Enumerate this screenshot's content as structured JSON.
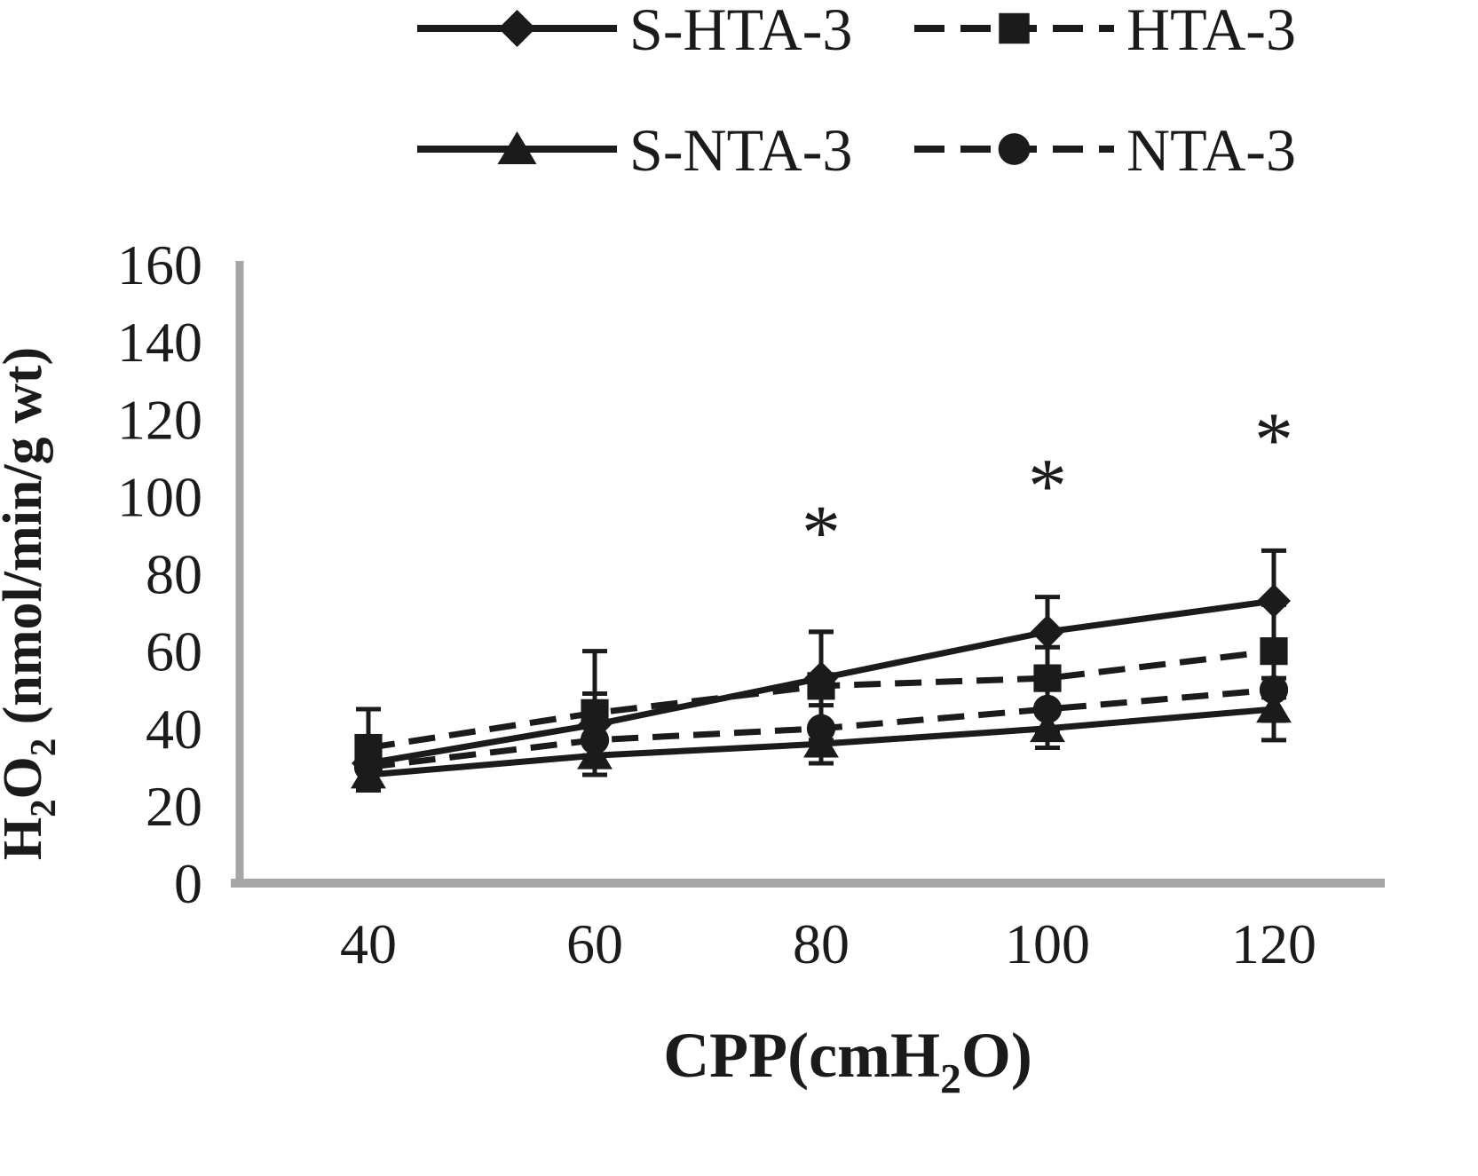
{
  "chart_data": {
    "type": "line",
    "x": [
      40,
      60,
      80,
      100,
      120
    ],
    "xlabel": "CPP(cmH2O)",
    "ylabel": "H2O2 (nmol/min/g wt)",
    "xlabel_parts": [
      {
        "t": "CPP(cmH"
      },
      {
        "t": "2",
        "sub": true
      },
      {
        "t": "O)"
      }
    ],
    "ylabel_parts": [
      {
        "t": "H"
      },
      {
        "t": "2",
        "sub": true
      },
      {
        "t": "O"
      },
      {
        "t": "2",
        "sub": true
      },
      {
        "t": " (nmol/min/g wt)"
      }
    ],
    "ylim": [
      0,
      160
    ],
    "yticks": [
      0,
      20,
      40,
      60,
      80,
      100,
      120,
      140,
      160
    ],
    "grid": false,
    "legend_position": "top",
    "axis_color": "#a6a6a6",
    "data_color": "#1b1b1b",
    "series": [
      {
        "name": "S-HTA-3",
        "marker": "diamond",
        "dash": false,
        "values": [
          31,
          41,
          53,
          65,
          73
        ],
        "errors": [
          5,
          8,
          12,
          9,
          13
        ]
      },
      {
        "name": "HTA-3",
        "marker": "square",
        "dash": true,
        "values": [
          35,
          44,
          51,
          53,
          60
        ],
        "errors": [
          10,
          16,
          14,
          8,
          12
        ]
      },
      {
        "name": "S-NTA-3",
        "marker": "triangle",
        "dash": false,
        "values": [
          28,
          33,
          36,
          40,
          45
        ],
        "errors": [
          4,
          5,
          5,
          5,
          8
        ]
      },
      {
        "name": "NTA-3",
        "marker": "circle",
        "dash": true,
        "values": [
          30,
          37,
          40,
          45,
          50
        ],
        "errors": [
          5,
          6,
          6,
          6,
          8
        ]
      }
    ],
    "annotations": [
      {
        "x": 80,
        "y": 93,
        "text": "*"
      },
      {
        "x": 100,
        "y": 105,
        "text": "*"
      },
      {
        "x": 120,
        "y": 117,
        "text": "*"
      }
    ]
  }
}
